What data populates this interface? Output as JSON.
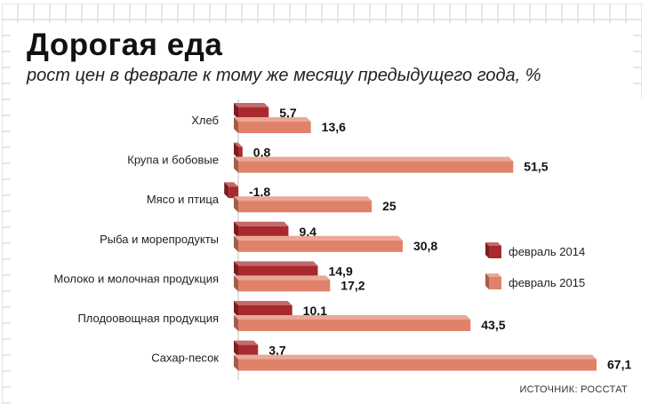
{
  "chart_data": {
    "type": "bar",
    "orientation": "horizontal",
    "title": "Дорогая еда",
    "subtitle": "рост цен в феврале к тому же месяцу предыдущего года, %",
    "categories": [
      "Хлеб",
      "Крупа и бобовые",
      "Мясо и птица",
      "Рыба и морепродукты",
      "Молоко и молочная продукция",
      "Плодоовощная продукция",
      "Сахар-песок"
    ],
    "series": [
      {
        "name": "февраль 2014",
        "values": [
          5.7,
          0.8,
          -1.8,
          9.4,
          14.9,
          10.1,
          3.7
        ],
        "labels": [
          "5,7",
          "0,8",
          "-1,8",
          "9,4",
          "14,9",
          "10,1",
          "3,7"
        ],
        "color": "#a82a2e"
      },
      {
        "name": "февраль 2015",
        "values": [
          13.6,
          51.5,
          25,
          30.8,
          17.2,
          43.5,
          67.1
        ],
        "labels": [
          "13,6",
          "51,5",
          "25",
          "30,8",
          "17,2",
          "43,5",
          "67,1"
        ],
        "color": "#e0826a"
      }
    ],
    "xlim": [
      -2,
      68
    ],
    "legend_position": "right",
    "grid": true
  },
  "source": "ИСТОЧНИК: РОССТАТ"
}
